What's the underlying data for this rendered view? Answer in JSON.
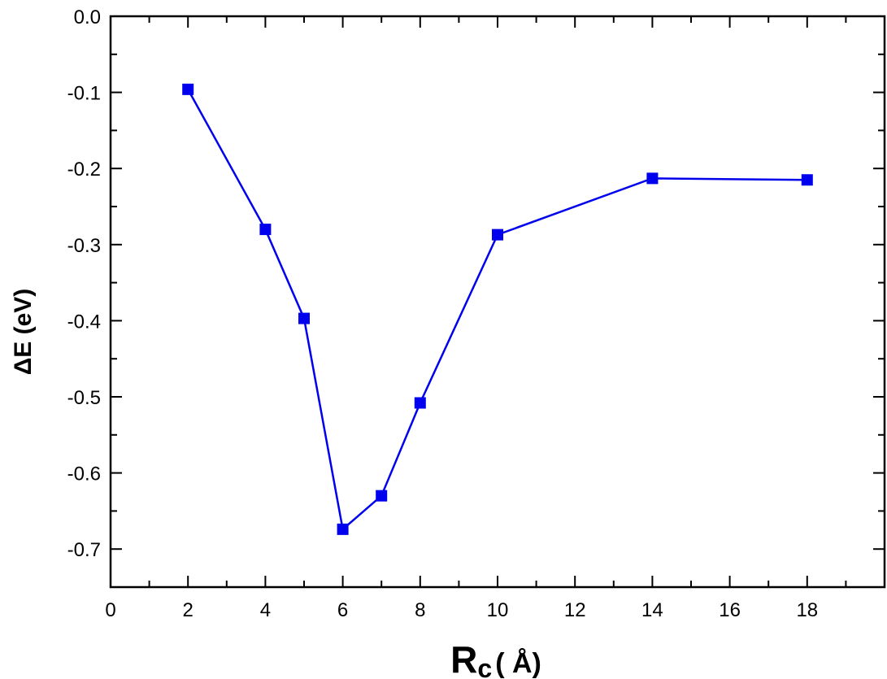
{
  "chart_data": {
    "type": "line",
    "title": "",
    "xlabel_main": "R",
    "xlabel_sub": "c",
    "xlabel_unit": "( Å)",
    "ylabel": "ΔE (eV)",
    "xlim": [
      0,
      20
    ],
    "ylim": [
      -0.75,
      0.0
    ],
    "x_ticks": [
      0,
      2,
      4,
      6,
      8,
      10,
      12,
      14,
      16,
      18
    ],
    "y_ticks": [
      0.0,
      -0.1,
      -0.2,
      -0.3,
      -0.4,
      -0.5,
      -0.6,
      -0.7
    ],
    "x_tick_labels": [
      "0",
      "2",
      "4",
      "6",
      "8",
      "10",
      "12",
      "14",
      "16",
      "18"
    ],
    "y_tick_labels": [
      "0.0",
      "-0.1",
      "-0.2",
      "-0.3",
      "-0.4",
      "-0.5",
      "-0.6",
      "-0.7"
    ],
    "grid": false,
    "series": [
      {
        "marker": "square",
        "color": "#0000ee",
        "x": [
          2,
          4,
          5,
          6,
          7,
          8,
          10,
          14,
          18
        ],
        "y": [
          -0.096,
          -0.28,
          -0.397,
          -0.674,
          -0.63,
          -0.508,
          -0.287,
          -0.213,
          -0.215
        ]
      }
    ]
  }
}
